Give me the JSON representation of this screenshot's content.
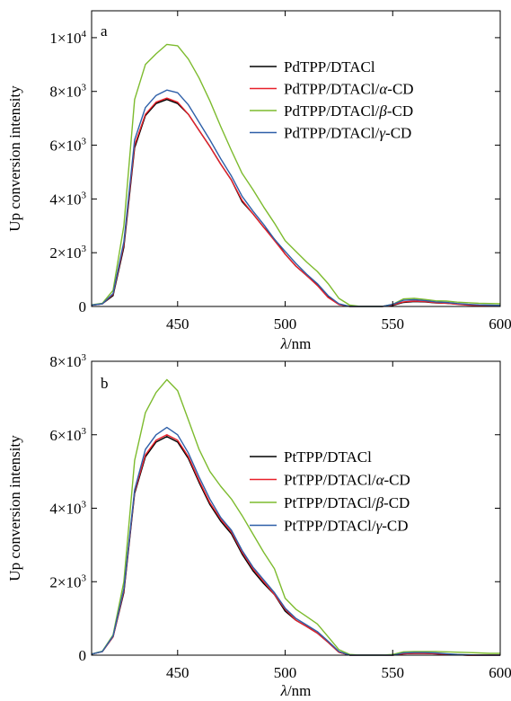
{
  "chart_data": [
    {
      "type": "line",
      "panel_label": "a",
      "xlabel_prefix": "λ",
      "xlabel_suffix": "/nm",
      "ylabel": "Up conversion intensity",
      "xlim": [
        410,
        600
      ],
      "ylim": [
        0,
        11000
      ],
      "xticks": [
        450,
        500,
        550,
        600
      ],
      "yticks": [
        {
          "value": 0,
          "mant": "0",
          "exp": ""
        },
        {
          "value": 2000,
          "mant": "2×10",
          "exp": "3"
        },
        {
          "value": 4000,
          "mant": "4×10",
          "exp": "3"
        },
        {
          "value": 6000,
          "mant": "6×10",
          "exp": "3"
        },
        {
          "value": 8000,
          "mant": "8×10",
          "exp": "3"
        },
        {
          "value": 10000,
          "mant": "1×10",
          "exp": "4"
        }
      ],
      "legend_position": "top-right",
      "series": [
        {
          "name_prefix": "PdTPP/DTACl",
          "name_italic": "",
          "name_suffix": "",
          "color": "#000000",
          "x": [
            410,
            415,
            420,
            425,
            430,
            435,
            440,
            445,
            450,
            455,
            460,
            465,
            470,
            475,
            480,
            485,
            490,
            495,
            500,
            505,
            510,
            515,
            520,
            525,
            530,
            535,
            540,
            545,
            550,
            555,
            560,
            565,
            570,
            575,
            580,
            585,
            590,
            595,
            600
          ],
          "y": [
            50,
            100,
            400,
            2200,
            5900,
            7100,
            7550,
            7700,
            7550,
            7150,
            6550,
            5950,
            5300,
            4700,
            3900,
            3450,
            2950,
            2500,
            1950,
            1500,
            1150,
            800,
            350,
            80,
            0,
            0,
            0,
            0,
            40,
            150,
            180,
            170,
            130,
            120,
            90,
            60,
            40,
            30,
            30
          ]
        },
        {
          "name_prefix": "PdTPP/DTACl/",
          "name_italic": "α",
          "name_suffix": "-CD",
          "color": "#e8202a",
          "x": [
            410,
            415,
            420,
            425,
            430,
            435,
            440,
            445,
            450,
            455,
            460,
            465,
            470,
            475,
            480,
            485,
            490,
            495,
            500,
            505,
            510,
            515,
            520,
            525,
            530,
            535,
            540,
            545,
            550,
            555,
            560,
            565,
            570,
            575,
            580,
            585,
            590,
            595,
            600
          ],
          "y": [
            50,
            100,
            450,
            2300,
            6000,
            7150,
            7600,
            7750,
            7600,
            7150,
            6550,
            5950,
            5300,
            4700,
            3950,
            3450,
            2950,
            2450,
            1950,
            1500,
            1150,
            780,
            330,
            70,
            0,
            0,
            0,
            0,
            60,
            170,
            200,
            180,
            140,
            120,
            80,
            50,
            30,
            20,
            20
          ]
        },
        {
          "name_prefix": "PdTPP/DTACl/",
          "name_italic": "β",
          "name_suffix": "-CD",
          "color": "#7dbb2e",
          "x": [
            410,
            415,
            420,
            425,
            430,
            435,
            440,
            445,
            450,
            455,
            460,
            465,
            470,
            475,
            480,
            485,
            490,
            495,
            500,
            505,
            510,
            515,
            520,
            525,
            530,
            535,
            540,
            545,
            550,
            555,
            560,
            565,
            570,
            575,
            580,
            585,
            590,
            595,
            600
          ],
          "y": [
            60,
            120,
            600,
            3000,
            7700,
            9000,
            9400,
            9750,
            9700,
            9200,
            8500,
            7650,
            6700,
            5800,
            4950,
            4350,
            3700,
            3100,
            2450,
            2050,
            1650,
            1300,
            850,
            300,
            50,
            0,
            0,
            0,
            80,
            280,
            300,
            260,
            210,
            200,
            160,
            140,
            120,
            110,
            100
          ]
        },
        {
          "name_prefix": "PdTPP/DTACl/",
          "name_italic": "γ",
          "name_suffix": "-CD",
          "color": "#2e5fa8",
          "x": [
            410,
            415,
            420,
            425,
            430,
            435,
            440,
            445,
            450,
            455,
            460,
            465,
            470,
            475,
            480,
            485,
            490,
            495,
            500,
            505,
            510,
            515,
            520,
            525,
            530,
            535,
            540,
            545,
            550,
            555,
            560,
            565,
            570,
            575,
            580,
            585,
            590,
            595,
            600
          ],
          "y": [
            50,
            100,
            480,
            2400,
            6200,
            7400,
            7850,
            8050,
            7950,
            7500,
            6850,
            6200,
            5500,
            4850,
            4100,
            3550,
            3050,
            2500,
            2050,
            1600,
            1200,
            850,
            400,
            100,
            0,
            0,
            0,
            0,
            80,
            230,
            250,
            220,
            170,
            150,
            110,
            80,
            60,
            50,
            40
          ]
        }
      ]
    },
    {
      "type": "line",
      "panel_label": "b",
      "xlabel_prefix": "λ",
      "xlabel_suffix": "/nm",
      "ylabel": "Up conversion intensity",
      "xlim": [
        410,
        600
      ],
      "ylim": [
        0,
        8000
      ],
      "xticks": [
        450,
        500,
        550,
        600
      ],
      "yticks": [
        {
          "value": 0,
          "mant": "0",
          "exp": ""
        },
        {
          "value": 2000,
          "mant": "2×10",
          "exp": "3"
        },
        {
          "value": 4000,
          "mant": "4×10",
          "exp": "3"
        },
        {
          "value": 6000,
          "mant": "6×10",
          "exp": "3"
        },
        {
          "value": 8000,
          "mant": "8×10",
          "exp": "3"
        }
      ],
      "legend_position": "right",
      "series": [
        {
          "name_prefix": "PtTPP/DTACl",
          "name_italic": "",
          "name_suffix": "",
          "color": "#000000",
          "x": [
            410,
            415,
            420,
            425,
            430,
            435,
            440,
            445,
            450,
            455,
            460,
            465,
            470,
            475,
            480,
            485,
            490,
            495,
            500,
            505,
            510,
            515,
            520,
            525,
            530,
            535,
            540,
            545,
            550,
            555,
            560,
            565,
            570,
            575,
            580,
            585,
            590,
            595,
            600
          ],
          "y": [
            30,
            100,
            500,
            1700,
            4400,
            5400,
            5800,
            5950,
            5800,
            5350,
            4700,
            4100,
            3650,
            3300,
            2750,
            2300,
            1950,
            1650,
            1200,
            950,
            780,
            600,
            350,
            80,
            0,
            0,
            0,
            0,
            0,
            40,
            50,
            50,
            40,
            20,
            10,
            0,
            0,
            0,
            0
          ]
        },
        {
          "name_prefix": "PtTPP/DTACl/",
          "name_italic": "α",
          "name_suffix": "-CD",
          "color": "#e8202a",
          "x": [
            410,
            415,
            420,
            425,
            430,
            435,
            440,
            445,
            450,
            455,
            460,
            465,
            470,
            475,
            480,
            485,
            490,
            495,
            500,
            505,
            510,
            515,
            520,
            525,
            530,
            535,
            540,
            545,
            550,
            555,
            560,
            565,
            570,
            575,
            580,
            585,
            590,
            595,
            600
          ],
          "y": [
            30,
            100,
            500,
            1750,
            4450,
            5450,
            5850,
            6000,
            5850,
            5400,
            4750,
            4150,
            3700,
            3350,
            2800,
            2350,
            2000,
            1650,
            1250,
            950,
            780,
            600,
            350,
            80,
            0,
            0,
            0,
            0,
            0,
            40,
            50,
            50,
            40,
            20,
            10,
            0,
            0,
            0,
            0
          ]
        },
        {
          "name_prefix": "PtTPP/DTACl/",
          "name_italic": "β",
          "name_suffix": "-CD",
          "color": "#7dbb2e",
          "x": [
            410,
            415,
            420,
            425,
            430,
            435,
            440,
            445,
            450,
            455,
            460,
            465,
            470,
            475,
            480,
            485,
            490,
            495,
            500,
            505,
            510,
            515,
            520,
            525,
            530,
            535,
            540,
            545,
            550,
            555,
            560,
            565,
            570,
            575,
            580,
            585,
            590,
            595,
            600
          ],
          "y": [
            30,
            110,
            550,
            2000,
            5300,
            6600,
            7150,
            7500,
            7200,
            6400,
            5600,
            5000,
            4600,
            4250,
            3800,
            3300,
            2800,
            2350,
            1550,
            1250,
            1050,
            850,
            500,
            150,
            20,
            0,
            0,
            0,
            20,
            90,
            100,
            100,
            100,
            90,
            80,
            70,
            60,
            50,
            50
          ]
        },
        {
          "name_prefix": "PtTPP/DTACl/",
          "name_italic": "γ",
          "name_suffix": "-CD",
          "color": "#2e5fa8",
          "x": [
            410,
            415,
            420,
            425,
            430,
            435,
            440,
            445,
            450,
            455,
            460,
            465,
            470,
            475,
            480,
            485,
            490,
            495,
            500,
            505,
            510,
            515,
            520,
            525,
            530,
            535,
            540,
            545,
            550,
            555,
            560,
            565,
            570,
            575,
            580,
            585,
            590,
            595,
            600
          ],
          "y": [
            30,
            100,
            520,
            1800,
            4500,
            5600,
            6000,
            6200,
            6000,
            5500,
            4850,
            4250,
            3750,
            3400,
            2850,
            2400,
            2050,
            1700,
            1280,
            1000,
            820,
            640,
            380,
            100,
            0,
            0,
            0,
            0,
            0,
            60,
            70,
            70,
            60,
            40,
            20,
            10,
            0,
            0,
            0
          ]
        }
      ]
    }
  ]
}
